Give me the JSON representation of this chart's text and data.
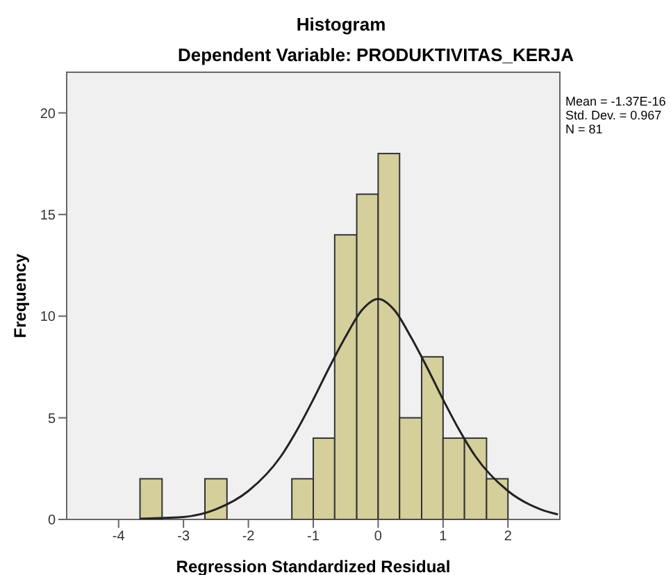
{
  "chart_data": {
    "type": "histogram",
    "title": "Histogram",
    "subtitle": "Dependent Variable: PRODUKTIVITAS_KERJA",
    "xlabel": "Regression Standardized Residual",
    "ylabel": "Frequency",
    "bins": [
      -3.67,
      -3.33,
      -2.67,
      -2.33,
      -1.33,
      -1,
      -0.67,
      -0.33,
      0,
      0.33,
      0.67,
      1,
      1.33,
      1.67,
      2
    ],
    "values": [
      2,
      0,
      2,
      0,
      2,
      4,
      14,
      16,
      18,
      5,
      8,
      4,
      4,
      2
    ],
    "color": "#d4cf9b",
    "series": [
      {
        "type": "line",
        "color": "#222222",
        "x": [
          -3.67,
          -3.5,
          -3,
          -2.5,
          -2,
          -1.5,
          -1.25,
          -1,
          -0.75,
          -0.5,
          -0.25,
          0,
          0.25,
          0.5,
          0.75,
          1,
          1.25,
          1.5,
          2,
          2.5,
          2.77
        ],
        "values": [
          0.03,
          0.05,
          0.12,
          0.5,
          1.4,
          3.1,
          4.4,
          5.9,
          7.5,
          9.0,
          10.3,
          10.85,
          10.3,
          9.0,
          7.5,
          5.9,
          4.4,
          3.1,
          1.4,
          0.5,
          0.25
        ]
      }
    ],
    "xlim": [
      -4.8,
      2.8
    ],
    "xticks": [
      -4,
      -3,
      -2,
      -1,
      0,
      1,
      2
    ],
    "ylim": [
      0,
      22
    ],
    "yticks": [
      0,
      5,
      10,
      15,
      20
    ],
    "annotations": [
      "Mean = -1.37E-16",
      "Std. Dev. = 0.967",
      "N = 81"
    ]
  }
}
